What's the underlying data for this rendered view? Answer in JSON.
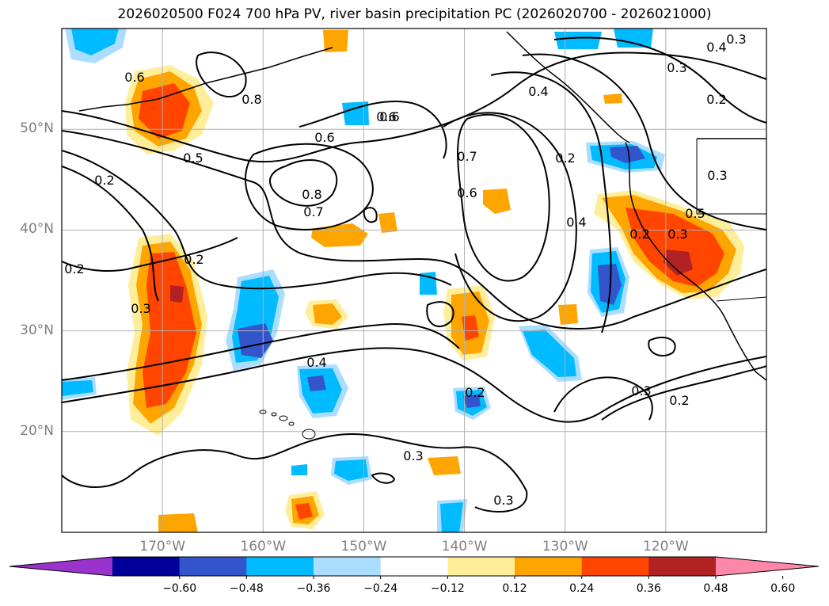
{
  "title": "2026020500 F024 700 hPa PV, river basin precipitation PC (2026020700 - 2026021000)",
  "map": {
    "projection_extent": {
      "lon_min": -180,
      "lon_max": -110,
      "lat_min": 10,
      "lat_max": 60
    },
    "lat_ticks": [
      {
        "label": "50°N",
        "lat": 50
      },
      {
        "label": "40°N",
        "lat": 40
      },
      {
        "label": "30°N",
        "lat": 30
      },
      {
        "label": "20°N",
        "lat": 20
      }
    ],
    "lon_ticks": [
      {
        "label": "170°W",
        "lon": -170
      },
      {
        "label": "160°W",
        "lon": -160
      },
      {
        "label": "150°W",
        "lon": -150
      },
      {
        "label": "140°W",
        "lon": -140
      },
      {
        "label": "130°W",
        "lon": -130
      },
      {
        "label": "120°W",
        "lon": -120
      }
    ],
    "contour_labels": [
      "0.6",
      "0.8",
      "0.5",
      "0.2",
      "0.6",
      "0.8",
      "0.7",
      "0.6",
      "0.7",
      "0.6",
      "0.2",
      "0.4",
      "0.3",
      "0.2",
      "0.4",
      "0.3",
      "0.5",
      "0.3",
      "0.2",
      "0.3",
      "0.2",
      "0.2",
      "0.3",
      "0.3",
      "0.2",
      "0.3",
      "0.6",
      "0.4",
      "0.2",
      "0.4",
      "0.3"
    ]
  },
  "colorbar": {
    "colors": [
      "#9933cc",
      "#000099",
      "#3355cc",
      "#00bbff",
      "#aaddff",
      "#ffffff",
      "#ffee99",
      "#ffa500",
      "#ff4500",
      "#b22222",
      "#ff88aa"
    ],
    "tick_labels": [
      "−0.60",
      "−0.48",
      "−0.36",
      "−0.24",
      "−0.12",
      "0.12",
      "0.24",
      "0.36",
      "0.48",
      "0.60"
    ]
  },
  "legend_colors": {
    "pos_light": "#ffee99",
    "pos_orange": "#ffa500",
    "pos_red": "#ff4500",
    "pos_dark": "#b22222",
    "neg_light": "#aaddff",
    "neg_cyan": "#00bbff",
    "neg_blue": "#3355cc",
    "neg_dark": "#000099"
  }
}
